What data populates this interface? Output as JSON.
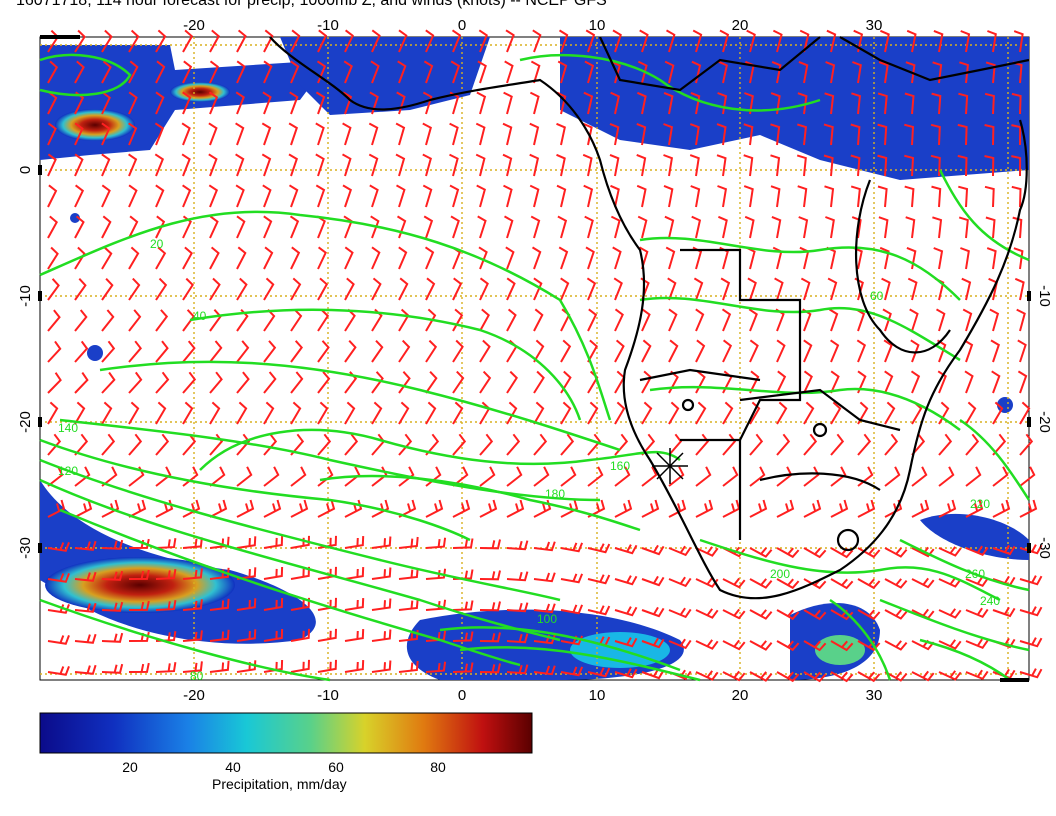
{
  "title": "16071718, 114 hour forecast for precip, 1000mb Z, and winds (knots) -- NCEP GFS",
  "map": {
    "lon_ticks": [
      "-20",
      "-10",
      "0",
      "10",
      "20",
      "30"
    ],
    "lat_ticks": [
      "0",
      "-10",
      "-20",
      "-30"
    ],
    "contour_labels": [
      "20",
      "40",
      "60",
      "80",
      "100",
      "120",
      "140",
      "160",
      "180",
      "200",
      "220",
      "240",
      "260"
    ],
    "precip_colors": [
      "#0b0b8a",
      "#1a52d6",
      "#19b7e6",
      "#59d18a",
      "#d8d22a",
      "#e07a10",
      "#b81010",
      "#5a0000"
    ],
    "contour_color": "#22dd22",
    "barb_color": "#ff2020",
    "grid_color": "#d8b020",
    "marker": "cross"
  },
  "colorbar": {
    "ticks": [
      "20",
      "40",
      "60",
      "80"
    ],
    "label": "Precipitation, mm/day",
    "range": [
      0,
      100
    ]
  }
}
